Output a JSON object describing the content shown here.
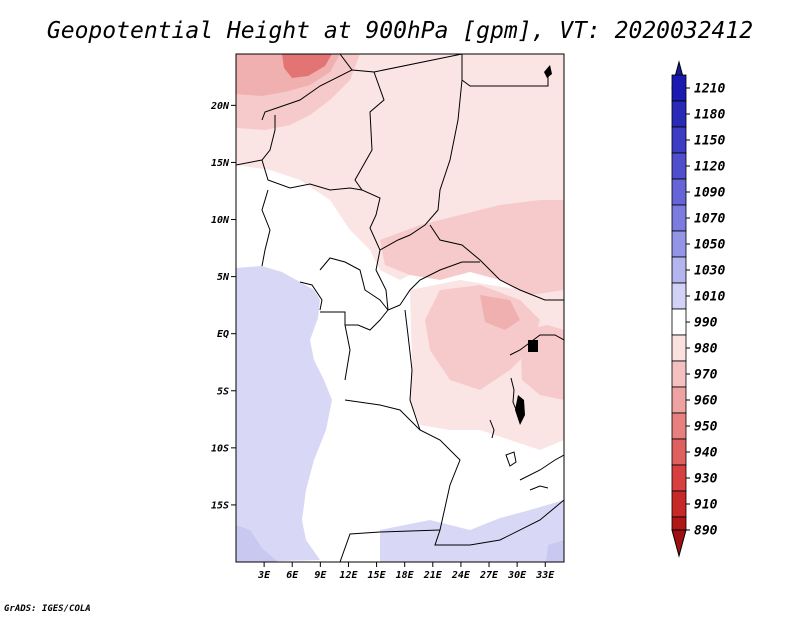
{
  "title": "Geopotential Height at 900hPa [gpm], VT: 2020032412",
  "credit": "GrADS: IGES/COLA",
  "map": {
    "lon_range": [
      0,
      35
    ],
    "lat_range": [
      -20,
      24.5
    ],
    "lon_ticks": [
      {
        "value": 3,
        "label": "3E"
      },
      {
        "value": 6,
        "label": "6E"
      },
      {
        "value": 9,
        "label": "9E"
      },
      {
        "value": 12,
        "label": "12E"
      },
      {
        "value": 15,
        "label": "15E"
      },
      {
        "value": 18,
        "label": "18E"
      },
      {
        "value": 21,
        "label": "21E"
      },
      {
        "value": 24,
        "label": "24E"
      },
      {
        "value": 27,
        "label": "27E"
      },
      {
        "value": 30,
        "label": "30E"
      },
      {
        "value": 33,
        "label": "33E"
      }
    ],
    "lat_ticks": [
      {
        "value": 20,
        "label": "20N"
      },
      {
        "value": 15,
        "label": "15N"
      },
      {
        "value": 10,
        "label": "10N"
      },
      {
        "value": 5,
        "label": "5N"
      },
      {
        "value": 0,
        "label": "EQ"
      },
      {
        "value": -5,
        "label": "5S"
      },
      {
        "value": -10,
        "label": "10S"
      },
      {
        "value": -15,
        "label": "15S"
      }
    ]
  },
  "colorbar": {
    "levels": [
      {
        "label": "1210",
        "color": "#1a1ab0"
      },
      {
        "label": "1180",
        "color": "#2a2ab8"
      },
      {
        "label": "1150",
        "color": "#3c3cc4"
      },
      {
        "label": "1120",
        "color": "#4f4fce"
      },
      {
        "label": "1090",
        "color": "#6565d8"
      },
      {
        "label": "1070",
        "color": "#7c7ce0"
      },
      {
        "label": "1050",
        "color": "#9595e8"
      },
      {
        "label": "1030",
        "color": "#b4b4ef"
      },
      {
        "label": "1010",
        "color": "#d2d2f6"
      },
      {
        "label": "990",
        "color": "#ffffff"
      },
      {
        "label": "980",
        "color": "#fbe0e0"
      },
      {
        "label": "970",
        "color": "#f5c0c0"
      },
      {
        "label": "960",
        "color": "#efa2a2"
      },
      {
        "label": "950",
        "color": "#e88080"
      },
      {
        "label": "940",
        "color": "#e06060"
      },
      {
        "label": "930",
        "color": "#d84040"
      },
      {
        "label": "910",
        "color": "#c82828"
      },
      {
        "label": "890",
        "color": "#b01818"
      }
    ],
    "top_color": "#1a1a9a",
    "bottom_color": "#a01010"
  },
  "colors": {
    "ocean": "#d8d8f6",
    "ocean_deep": "#c8c8f0",
    "land_neutral": "#ffffff",
    "pink_light": "#fbe4e4",
    "pink_mid": "#f6caca",
    "pink_strong": "#f0b0b0",
    "red_max": "#e27474"
  }
}
